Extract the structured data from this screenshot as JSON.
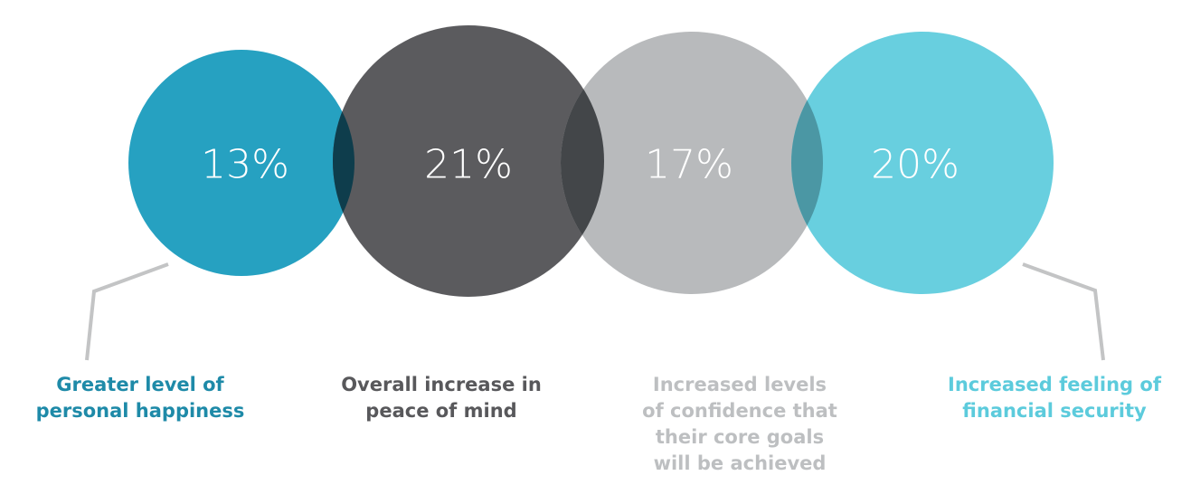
{
  "colors": {
    "teal": "#26a1c1",
    "charcoal": "#5b5b5e",
    "gray": "#b8babc",
    "light_cyan": "#68cfdf",
    "overlap_teal_charcoal": "#0e3d4c",
    "overlap_charcoal_gray": "#434649",
    "overlap_gray_cyan": "#4b97a4",
    "leader_line": "#c3c4c5"
  },
  "items": [
    {
      "value": "13%",
      "label": "Greater level of\npersonal happiness",
      "color": "#1e8aa8"
    },
    {
      "value": "21%",
      "label": "Overall increase in\npeace of mind",
      "color": "#58585b"
    },
    {
      "value": "17%",
      "label": "Increased levels\nof confidence that\ntheir core goals\nwill be achieved",
      "color": "#bdbfc1"
    },
    {
      "value": "20%",
      "label": "Increased feeling of\nfinancial security",
      "color": "#5ccbdc"
    }
  ]
}
